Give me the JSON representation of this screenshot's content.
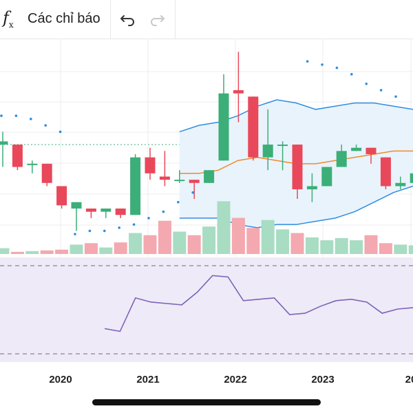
{
  "toolbar": {
    "indicators_icon": "fx-icon",
    "indicators_label": "Các chỉ báo",
    "undo_icon": "undo-icon",
    "redo_icon": "redo-icon"
  },
  "colors": {
    "up": "#26a269",
    "up_body": "#3cae78",
    "down": "#e8485a",
    "vol_up": "#a8dcc3",
    "vol_down": "#f4a8b0",
    "bb_line": "#2e8de0",
    "bb_fill": "#e9f3fc",
    "mid_line": "#ef8a2b",
    "sar_dot": "#2e8de0",
    "osc_line": "#7b62b8",
    "osc_bg": "#efeaf7",
    "grid": "#ececec"
  },
  "chart_data": {
    "type": "candlestick",
    "x_axis_labels": [
      "2020",
      "2021",
      "2022",
      "2023",
      "20"
    ],
    "series": [
      {
        "name": "",
        "open": 4.0,
        "high": 4.3,
        "low": 3.2,
        "close": 3.9,
        "direction": "up",
        "volume": 0.8
      },
      {
        "name": "",
        "open": 3.9,
        "high": 3.9,
        "low": 3.1,
        "close": 3.2,
        "direction": "down",
        "volume": 0.3
      },
      {
        "name": "",
        "open": 3.3,
        "high": 3.4,
        "low": 3.0,
        "close": 3.3,
        "direction": "up",
        "volume": 0.4
      },
      {
        "name": "",
        "open": 3.3,
        "high": 3.3,
        "low": 2.6,
        "close": 2.7,
        "direction": "down",
        "volume": 0.5
      },
      {
        "name": "",
        "open": 2.6,
        "high": 2.6,
        "low": 1.9,
        "close": 2.0,
        "direction": "down",
        "volume": 0.6
      },
      {
        "name": "",
        "open": 1.9,
        "high": 2.1,
        "low": 1.2,
        "close": 2.1,
        "direction": "up",
        "volume": 1.3
      },
      {
        "name": "",
        "open": 1.9,
        "high": 1.9,
        "low": 1.6,
        "close": 1.8,
        "direction": "down",
        "volume": 1.5
      },
      {
        "name": "",
        "open": 1.8,
        "high": 1.9,
        "low": 1.6,
        "close": 1.9,
        "direction": "up",
        "volume": 0.9
      },
      {
        "name": "",
        "open": 1.9,
        "high": 1.9,
        "low": 1.6,
        "close": 1.7,
        "direction": "down",
        "volume": 1.6
      },
      {
        "name": "",
        "open": 1.7,
        "high": 3.6,
        "low": 1.7,
        "close": 3.5,
        "direction": "up",
        "volume": 2.9
      },
      {
        "name": "",
        "open": 3.5,
        "high": 3.8,
        "low": 2.8,
        "close": 3.0,
        "direction": "down",
        "volume": 2.6
      },
      {
        "name": "",
        "open": 2.9,
        "high": 3.7,
        "low": 2.6,
        "close": 2.8,
        "direction": "down",
        "volume": 4.6
      },
      {
        "name": "",
        "open": 2.8,
        "high": 3.1,
        "low": 2.7,
        "close": 2.8,
        "direction": "up",
        "volume": 3.1
      },
      {
        "name": "",
        "open": 2.8,
        "high": 2.8,
        "low": 2.2,
        "close": 2.7,
        "direction": "down",
        "volume": 2.6
      },
      {
        "name": "",
        "open": 2.7,
        "high": 3.1,
        "low": 2.7,
        "close": 3.1,
        "direction": "up",
        "volume": 3.8
      },
      {
        "name": "",
        "open": 3.4,
        "high": 6.1,
        "low": 3.4,
        "close": 5.5,
        "direction": "up",
        "volume": 7.3
      },
      {
        "name": "",
        "open": 5.6,
        "high": 6.8,
        "low": 4.6,
        "close": 5.5,
        "direction": "down",
        "volume": 5.0
      },
      {
        "name": "",
        "open": 5.4,
        "high": 5.4,
        "low": 3.4,
        "close": 3.5,
        "direction": "down",
        "volume": 3.6
      },
      {
        "name": "",
        "open": 3.5,
        "high": 5.0,
        "low": 3.1,
        "close": 3.9,
        "direction": "up",
        "volume": 4.7
      },
      {
        "name": "",
        "open": 3.9,
        "high": 4.0,
        "low": 3.1,
        "close": 3.9,
        "direction": "up",
        "volume": 3.4
      },
      {
        "name": "",
        "open": 3.9,
        "high": 3.9,
        "low": 2.2,
        "close": 2.5,
        "direction": "down",
        "volume": 2.9
      },
      {
        "name": "",
        "open": 2.5,
        "high": 3.0,
        "low": 2.1,
        "close": 2.6,
        "direction": "up",
        "volume": 2.3
      },
      {
        "name": "",
        "open": 2.6,
        "high": 3.2,
        "low": 2.6,
        "close": 3.2,
        "direction": "up",
        "volume": 1.9
      },
      {
        "name": "",
        "open": 3.2,
        "high": 3.9,
        "low": 3.2,
        "close": 3.7,
        "direction": "up",
        "volume": 2.2
      },
      {
        "name": "",
        "open": 3.7,
        "high": 3.9,
        "low": 3.7,
        "close": 3.8,
        "direction": "up",
        "volume": 1.9
      },
      {
        "name": "",
        "open": 3.8,
        "high": 3.8,
        "low": 3.3,
        "close": 3.6,
        "direction": "down",
        "volume": 2.6
      },
      {
        "name": "",
        "open": 3.5,
        "high": 3.5,
        "low": 2.5,
        "close": 2.6,
        "direction": "down",
        "volume": 1.5
      },
      {
        "name": "",
        "open": 2.6,
        "high": 2.9,
        "low": 2.5,
        "close": 2.7,
        "direction": "up",
        "volume": 1.3
      },
      {
        "name": "",
        "open": 2.7,
        "high": 3.4,
        "low": 2.7,
        "close": 3.0,
        "direction": "up",
        "volume": 1.2
      }
    ],
    "bollinger": {
      "upper": [
        4.3,
        4.5,
        4.6,
        4.8,
        5.1,
        5.3,
        5.2,
        5.0,
        5.1,
        5.2,
        5.2,
        5.1,
        5.0
      ],
      "middle": [
        3.0,
        3.0,
        3.1,
        3.4,
        3.5,
        3.4,
        3.3,
        3.3,
        3.4,
        3.5,
        3.6,
        3.7,
        3.7
      ],
      "lower": [
        1.6,
        1.6,
        1.6,
        1.4,
        1.3,
        1.4,
        1.4,
        1.5,
        1.6,
        1.8,
        2.1,
        2.4,
        2.6
      ]
    },
    "parabolic_sar": [
      4.8,
      4.8,
      4.7,
      4.5,
      4.3,
      1.1,
      1.2,
      1.2,
      1.3,
      1.4,
      1.6,
      1.8,
      2.1,
      2.4,
      6.5,
      6.4,
      6.3,
      6.1,
      5.8,
      5.6,
      5.4
    ],
    "oscillator": [
      44,
      42,
      66,
      63,
      62,
      61,
      70,
      82,
      81,
      64,
      65,
      66,
      54,
      55,
      60,
      64,
      65,
      63,
      55,
      58,
      59
    ],
    "grid": true
  }
}
